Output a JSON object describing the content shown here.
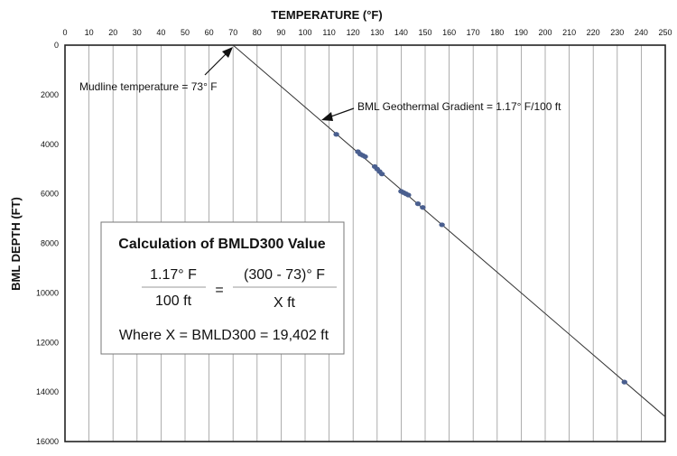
{
  "chart_data": {
    "type": "scatter",
    "title": "",
    "xlabel": "TEMPERATURE (°F)",
    "ylabel": "BML DEPTH (FT)",
    "xlim": [
      0,
      250
    ],
    "ylim": [
      0,
      16000
    ],
    "y_inverted": true,
    "x_axis_position": "top",
    "grid": "vertical",
    "x_ticks": [
      "0",
      "10",
      "20",
      "30",
      "40",
      "50",
      "60",
      "70",
      "80",
      "90",
      "100",
      "110",
      "120",
      "130",
      "140",
      "150",
      "160",
      "170",
      "180",
      "190",
      "200",
      "210",
      "220",
      "230",
      "240",
      "250"
    ],
    "y_ticks": [
      "0",
      "2000",
      "4000",
      "6000",
      "8000",
      "10000",
      "12000",
      "14000",
      "16000"
    ],
    "series": [
      {
        "type": "scatter",
        "color": "#4a5f8f",
        "points": [
          {
            "x": 113,
            "y": 3600
          },
          {
            "x": 122,
            "y": 4300
          },
          {
            "x": 123,
            "y": 4400
          },
          {
            "x": 124,
            "y": 4450
          },
          {
            "x": 125,
            "y": 4500
          },
          {
            "x": 129,
            "y": 4900
          },
          {
            "x": 130,
            "y": 5000
          },
          {
            "x": 131,
            "y": 5100
          },
          {
            "x": 132,
            "y": 5200
          },
          {
            "x": 140,
            "y": 5900
          },
          {
            "x": 141,
            "y": 5950
          },
          {
            "x": 142,
            "y": 6000
          },
          {
            "x": 143,
            "y": 6050
          },
          {
            "x": 147,
            "y": 6400
          },
          {
            "x": 149,
            "y": 6550
          },
          {
            "x": 157,
            "y": 7250
          },
          {
            "x": 233,
            "y": 13600
          }
        ]
      },
      {
        "type": "line",
        "color": "#333333",
        "x": [
          70,
          250
        ],
        "y": [
          0,
          15000
        ]
      }
    ],
    "annotations": {
      "mudline": "Mudline temperature = 73° F",
      "gradient": "BML Geothermal Gradient = 1.17° F/100 ft"
    },
    "calc_box": {
      "title": "Calculation of BMLD300 Value",
      "left_num": "1.17° F",
      "left_den": "100 ft",
      "equals": "=",
      "right_num": "(300 - 73)° F",
      "right_den": "X ft",
      "result": "Where X = BMLD300  =  19,402 ft"
    }
  }
}
